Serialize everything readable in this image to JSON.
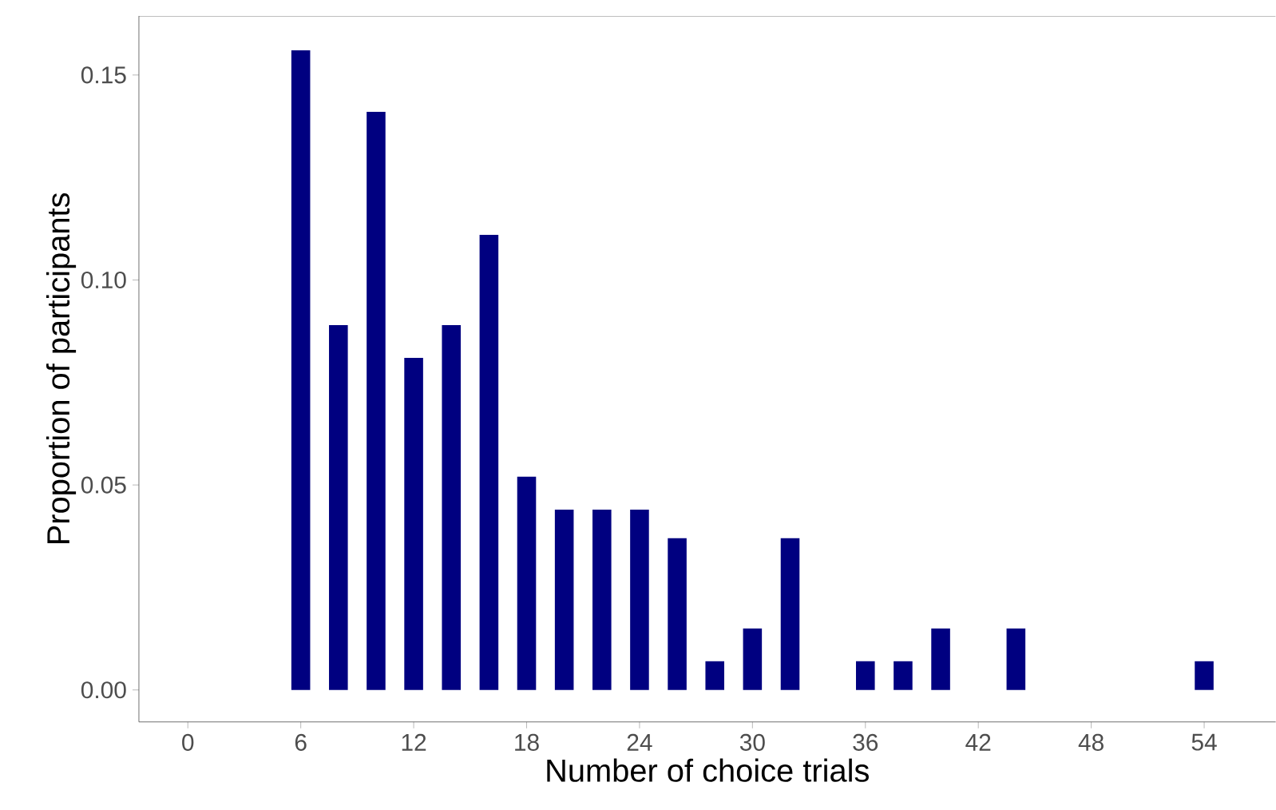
{
  "chart_data": {
    "type": "bar",
    "xlabel": "Number of choice trials",
    "ylabel": "Proportion of participants",
    "x": [
      6,
      8,
      10,
      12,
      14,
      16,
      18,
      20,
      22,
      24,
      26,
      28,
      30,
      32,
      36,
      38,
      40,
      44,
      54
    ],
    "values": [
      0.156,
      0.089,
      0.141,
      0.081,
      0.089,
      0.111,
      0.052,
      0.044,
      0.044,
      0.044,
      0.037,
      0.007,
      0.015,
      0.037,
      0.007,
      0.007,
      0.015,
      0.015,
      0.007
    ],
    "color": "#000080",
    "xlim": [
      -2.6,
      57.8
    ],
    "ylim": [
      -0.0078,
      0.1644
    ],
    "xticks": [
      0,
      6,
      12,
      18,
      24,
      30,
      36,
      42,
      48,
      54
    ],
    "yticks": [
      {
        "value": 0,
        "label": "0.00"
      },
      {
        "value": 0.05,
        "label": "0.05"
      },
      {
        "value": 0.1,
        "label": "0.10"
      },
      {
        "value": 0.15,
        "label": "0.15"
      }
    ],
    "grid": false
  }
}
